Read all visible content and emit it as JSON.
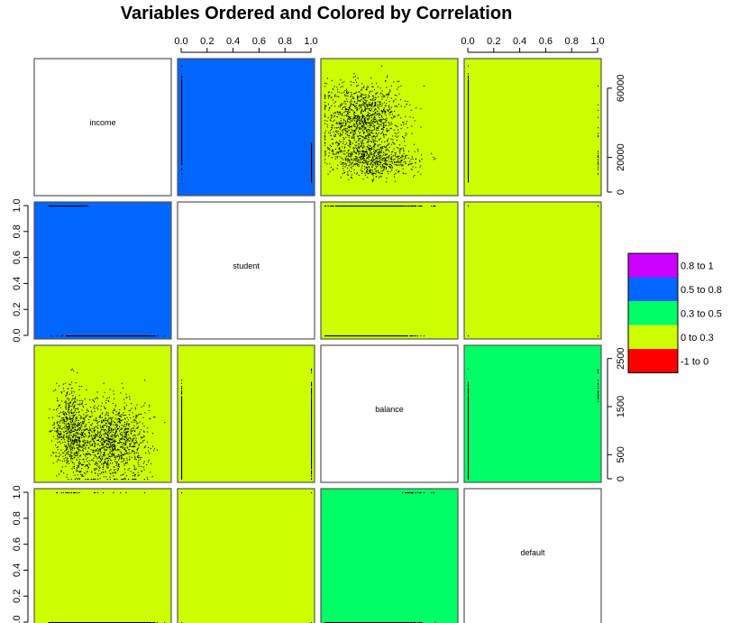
{
  "chart_data": {
    "type": "scatter",
    "title": "Variables Ordered and Colored by Correlation",
    "variables": [
      "income",
      "student",
      "balance",
      "default"
    ],
    "variable_ranges": {
      "income": [
        0,
        75000
      ],
      "student": [
        0,
        1
      ],
      "balance": [
        0,
        2700
      ],
      "default": [
        0,
        1
      ]
    },
    "ticks": {
      "income": [
        0,
        20000,
        60000
      ],
      "student": [
        0.0,
        0.2,
        0.4,
        0.6,
        0.8,
        1.0
      ],
      "balance": [
        0,
        500,
        1500,
        2500
      ],
      "default": [
        0.0,
        0.2,
        0.4,
        0.6,
        0.8,
        1.0
      ]
    },
    "tick_labels": {
      "income": [
        "0",
        "20000",
        "60000"
      ],
      "student": [
        "0.0",
        "0.2",
        "0.4",
        "0.6",
        "0.8",
        "1.0"
      ],
      "balance": [
        "0",
        "500",
        "1500",
        "2500"
      ],
      "default": [
        "0.0",
        "0.2",
        "0.4",
        "0.6",
        "0.8",
        "1.0"
      ]
    },
    "panel_colors": [
      [
        "",
        "#0066ff",
        "#ccff00",
        "#ccff00"
      ],
      [
        "#0066ff",
        "",
        "#ccff00",
        "#ccff00"
      ],
      [
        "#ccff00",
        "#ccff00",
        "",
        "#00ff66"
      ],
      [
        "#ccff00",
        "#ccff00",
        "#00ff66",
        ""
      ]
    ],
    "legend": {
      "placement": "right",
      "entries": [
        {
          "label": "0.8 to 1",
          "color": "#cc00ff"
        },
        {
          "label": "0.5 to 0.8",
          "color": "#0066ff"
        },
        {
          "label": "0.3 to 0.5",
          "color": "#00ff66"
        },
        {
          "label": "0 to 0.3",
          "color": "#ccff00"
        },
        {
          "label": "-1 to 0",
          "color": "#ff0000"
        }
      ]
    },
    "top_axis_columns": [
      "student",
      "default"
    ],
    "right_axis_rows": [
      "income",
      "balance"
    ],
    "left_axis_rows": [
      "student",
      "default"
    ],
    "bottom_axis_columns": [
      "income",
      "balance"
    ]
  }
}
